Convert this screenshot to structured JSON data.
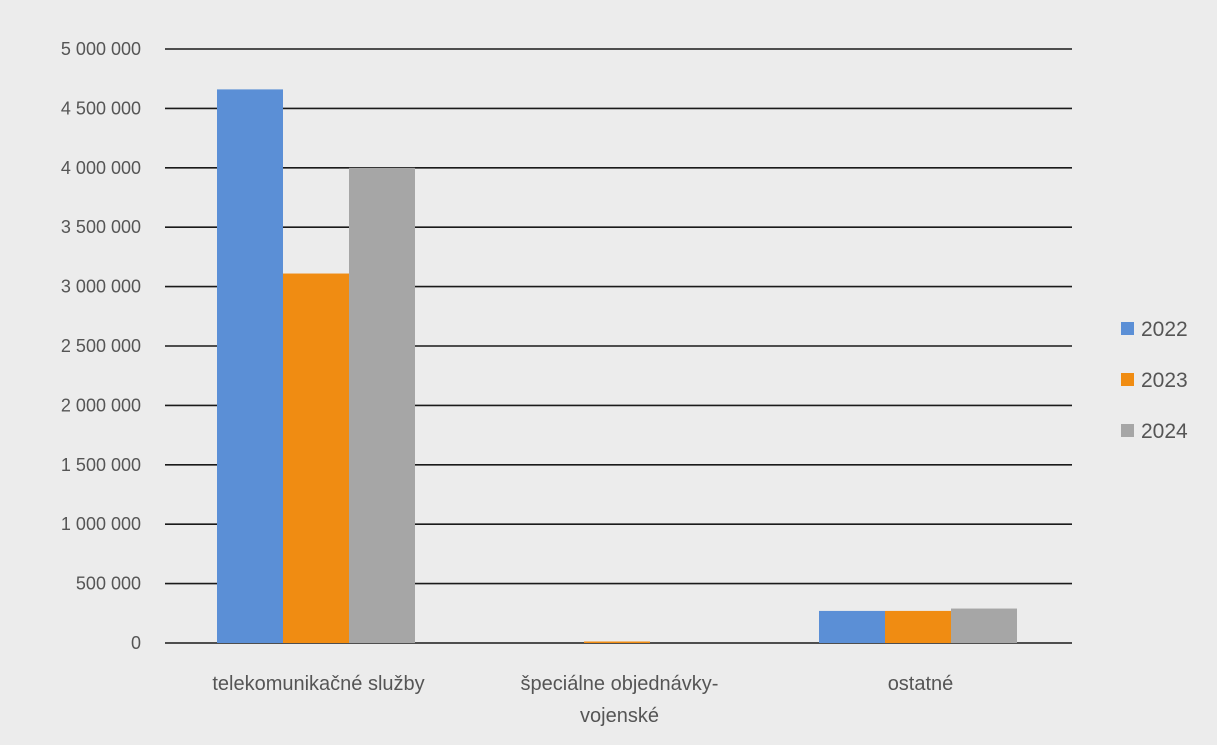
{
  "chart_data": {
    "type": "bar",
    "categories": [
      [
        "telekomunikačné služby"
      ],
      [
        "špeciálne objednávky-",
        "vojenské"
      ],
      [
        "ostatné"
      ]
    ],
    "series": [
      {
        "name": "2022",
        "color": "#5b8fd6",
        "values": [
          4660000,
          0,
          270000
        ]
      },
      {
        "name": "2023",
        "color": "#f08c12",
        "values": [
          3110000,
          10000,
          270000
        ]
      },
      {
        "name": "2024",
        "color": "#a6a6a6",
        "values": [
          4000000,
          0,
          290000
        ]
      }
    ],
    "ylim": [
      0,
      5000000
    ],
    "yticks": [
      {
        "value": 0,
        "label": "0"
      },
      {
        "value": 500000,
        "label": "500 000"
      },
      {
        "value": 1000000,
        "label": "1 000 000"
      },
      {
        "value": 1500000,
        "label": "1 500 000"
      },
      {
        "value": 2000000,
        "label": "2 000 000"
      },
      {
        "value": 2500000,
        "label": "2 500 000"
      },
      {
        "value": 3000000,
        "label": "3 000 000"
      },
      {
        "value": 3500000,
        "label": "3 500 000"
      },
      {
        "value": 4000000,
        "label": "4 000 000"
      },
      {
        "value": 4500000,
        "label": "4 500 000"
      },
      {
        "value": 5000000,
        "label": "5 000 000"
      }
    ],
    "grid": true,
    "legend_position": "right"
  }
}
